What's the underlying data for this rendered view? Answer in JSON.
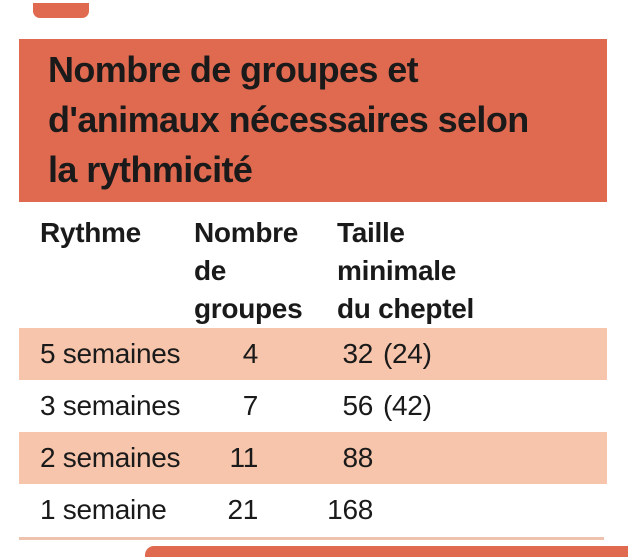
{
  "page": {
    "background": "#ffffff",
    "accent_red": "#e06a50",
    "row_stripe_pink": "#f6c5ab",
    "divider_pink": "#edc3ae",
    "text_color": "#1a1a1a"
  },
  "title": {
    "text": "Nombre de groupes et\nd'animaux nécessaires selon\nla rythmicité"
  },
  "table": {
    "headers": {
      "rythme": "Rythme",
      "groupes": "Nombre\nde\ngroupes",
      "cheptel": "Taille\nminimale\ndu cheptel"
    },
    "rows": [
      {
        "rythme": "5 semaines",
        "groupes": "4",
        "cheptel_num": "32",
        "cheptel_note": "(24)"
      },
      {
        "rythme": "3 semaines",
        "groupes": "7",
        "cheptel_num": "56",
        "cheptel_note": "(42)"
      },
      {
        "rythme": "2 semaines",
        "groupes": "11",
        "cheptel_num": "88",
        "cheptel_note": ""
      },
      {
        "rythme": "1 semaine",
        "groupes": "21",
        "cheptel_num": "168",
        "cheptel_note": ""
      }
    ]
  },
  "chart_data": {
    "type": "table",
    "title": "Nombre de groupes et d'animaux nécessaires selon la rythmicité",
    "columns": [
      "Rythme",
      "Nombre de groupes",
      "Taille minimale du cheptel"
    ],
    "rows": [
      [
        "5 semaines",
        4,
        "32 (24)"
      ],
      [
        "3 semaines",
        7,
        "56 (42)"
      ],
      [
        "2 semaines",
        11,
        "88"
      ],
      [
        "1 semaine",
        21,
        "168"
      ]
    ],
    "layout": {
      "striped_rows": "odd rows light salmon",
      "title_background": "#e06a50",
      "grid": "off"
    }
  }
}
